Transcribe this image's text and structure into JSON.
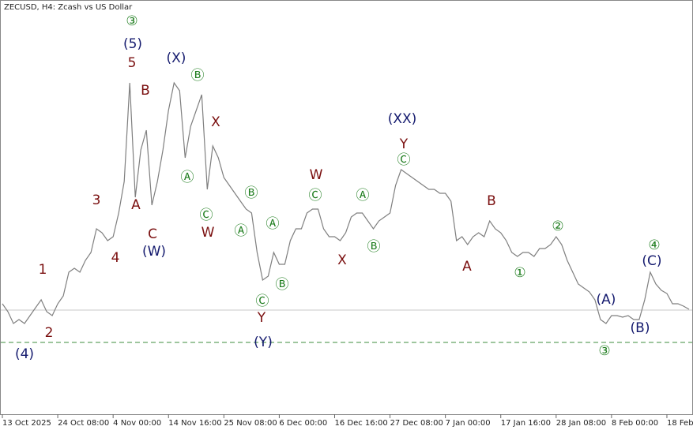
{
  "chart_data": {
    "type": "line",
    "title": "ZECUSD, H4:  Zcash vs US Dollar",
    "color": "#7f7f7f",
    "values": [
      140,
      130,
      115,
      120,
      115,
      125,
      135,
      145,
      130,
      125,
      140,
      150,
      180,
      185,
      180,
      195,
      205,
      235,
      230,
      220,
      225,
      255,
      295,
      420,
      275,
      335,
      360,
      265,
      295,
      335,
      385,
      420,
      410,
      325,
      365,
      385,
      405,
      285,
      340,
      325,
      300,
      290,
      280,
      270,
      260,
      255,
      205,
      170,
      175,
      205,
      190,
      190,
      220,
      235,
      235,
      255,
      260,
      260,
      235,
      225,
      225,
      220,
      230,
      250,
      255,
      255,
      245,
      235,
      245,
      250,
      255,
      290,
      310,
      305,
      300,
      295,
      290,
      285,
      285,
      280,
      280,
      270,
      220,
      225,
      215,
      225,
      230,
      225,
      245,
      235,
      230,
      220,
      205,
      200,
      205,
      205,
      200,
      210,
      210,
      215,
      225,
      215,
      195,
      180,
      165,
      160,
      155,
      145,
      120,
      115,
      125,
      125,
      123,
      125,
      120,
      120,
      145,
      180,
      165,
      157,
      153,
      140,
      140,
      137,
      133
    ],
    "xlim": [
      0,
      124
    ],
    "ylim": [
      0,
      525
    ],
    "xticks": [
      {
        "value": 0,
        "label": "13 Oct 2025"
      },
      {
        "value": 10,
        "label": "24 Oct 08:00"
      },
      {
        "value": 20,
        "label": "4 Nov 00:00"
      },
      {
        "value": 30,
        "label": "14 Nov 16:00"
      },
      {
        "value": 40,
        "label": "25 Nov 08:00"
      },
      {
        "value": 50,
        "label": "6 Dec 00:00"
      },
      {
        "value": 60,
        "label": "16 Dec 16:00"
      },
      {
        "value": 70,
        "label": "27 Dec 08:00"
      },
      {
        "value": 80,
        "label": "7 Jan 00:00"
      },
      {
        "value": 90,
        "label": "17 Jan 16:00"
      },
      {
        "value": 100,
        "label": "28 Jan 08:00"
      },
      {
        "value": 110,
        "label": "8 Feb 00:00"
      },
      {
        "value": 120,
        "label": "18 Feb"
      }
    ],
    "hlines": [
      {
        "value": 132,
        "color": "#c8c8c8",
        "style": "solid"
      },
      {
        "value": 91,
        "color": "#3c8c3c",
        "style": "dashed"
      }
    ],
    "annotations": [
      {
        "text": "③",
        "color": "#1e7d1e"
      },
      {
        "text": "(5)",
        "color": "#141a6e"
      },
      {
        "text": "5",
        "color": "#7a0f0f"
      },
      {
        "text": "(X)",
        "color": "#141a6e"
      },
      {
        "text": "Ⓑ",
        "color": "#1e7d1e"
      },
      {
        "text": "B",
        "color": "#7a0f0f"
      },
      {
        "text": "X",
        "color": "#7a0f0f"
      },
      {
        "text": "(XX)",
        "color": "#141a6e"
      },
      {
        "text": "Y",
        "color": "#7a0f0f"
      },
      {
        "text": "Ⓒ",
        "color": "#1e7d1e"
      },
      {
        "text": "W",
        "color": "#7a0f0f"
      },
      {
        "text": "Ⓐ",
        "color": "#1e7d1e"
      },
      {
        "text": "Ⓑ",
        "color": "#1e7d1e"
      },
      {
        "text": "Ⓒ",
        "color": "#1e7d1e"
      },
      {
        "text": "Ⓐ",
        "color": "#1e7d1e"
      },
      {
        "text": "3",
        "color": "#7a0f0f"
      },
      {
        "text": "A",
        "color": "#7a0f0f"
      },
      {
        "text": "B",
        "color": "#7a0f0f"
      },
      {
        "text": "Ⓒ",
        "color": "#1e7d1e"
      },
      {
        "text": "W",
        "color": "#7a0f0f"
      },
      {
        "text": "Ⓐ",
        "color": "#1e7d1e"
      },
      {
        "text": "Ⓐ",
        "color": "#1e7d1e"
      },
      {
        "text": "C",
        "color": "#7a0f0f"
      },
      {
        "text": "②",
        "color": "#1e7d1e"
      },
      {
        "text": "4",
        "color": "#7a0f0f"
      },
      {
        "text": "(W)",
        "color": "#141a6e"
      },
      {
        "text": "Ⓑ",
        "color": "#1e7d1e"
      },
      {
        "text": "X",
        "color": "#7a0f0f"
      },
      {
        "text": "A",
        "color": "#7a0f0f"
      },
      {
        "text": "①",
        "color": "#1e7d1e"
      },
      {
        "text": "④",
        "color": "#1e7d1e"
      },
      {
        "text": "(C)",
        "color": "#141a6e"
      },
      {
        "text": "1",
        "color": "#7a0f0f"
      },
      {
        "text": "Ⓑ",
        "color": "#1e7d1e"
      },
      {
        "text": "Ⓒ",
        "color": "#1e7d1e"
      },
      {
        "text": "Y",
        "color": "#7a0f0f"
      },
      {
        "text": "(A)",
        "color": "#141a6e"
      },
      {
        "text": "(B)",
        "color": "#141a6e"
      },
      {
        "text": "2",
        "color": "#7a0f0f"
      },
      {
        "text": "(Y)",
        "color": "#141a6e"
      },
      {
        "text": "(4)",
        "color": "#141a6e"
      },
      {
        "text": "③",
        "color": "#1e7d1e"
      }
    ]
  }
}
